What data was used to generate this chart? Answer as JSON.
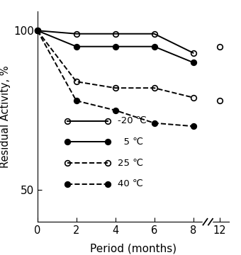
{
  "series": [
    {
      "key": "minus20",
      "label": "-20 ℃",
      "x_left": [
        0,
        2,
        4,
        6,
        8
      ],
      "y_left": [
        100,
        99,
        99,
        99,
        93
      ],
      "x_right": [
        12
      ],
      "y_right": [
        95
      ],
      "linestyle": "-",
      "fillstyle": "none"
    },
    {
      "key": "five",
      "label": "  5 ℃",
      "x_left": [
        0,
        2,
        4,
        6,
        8
      ],
      "y_left": [
        100,
        95,
        95,
        95,
        90
      ],
      "x_right": [],
      "y_right": [],
      "linestyle": "-",
      "fillstyle": "full"
    },
    {
      "key": "twentyfive",
      "label": "25 ℃",
      "x_left": [
        0,
        2,
        4,
        6,
        8
      ],
      "y_left": [
        100,
        84,
        82,
        82,
        79
      ],
      "x_right": [
        12
      ],
      "y_right": [
        78
      ],
      "linestyle": "--",
      "fillstyle": "none"
    },
    {
      "key": "forty",
      "label": "40 ℃",
      "x_left": [
        0,
        2,
        4,
        6,
        8
      ],
      "y_left": [
        100,
        78,
        75,
        71,
        70
      ],
      "x_right": [],
      "y_right": [],
      "linestyle": "--",
      "fillstyle": "full"
    }
  ],
  "xlabel": "Period (months)",
  "ylabel": "Residual Activity, %",
  "yticks": [
    50,
    100
  ],
  "xticks_left": [
    0,
    2,
    4,
    6,
    8
  ],
  "xticks_right": [
    12
  ],
  "ylim": [
    40,
    106
  ],
  "linewidth": 1.4,
  "markersize": 5.5,
  "markeredgewidth": 1.2
}
